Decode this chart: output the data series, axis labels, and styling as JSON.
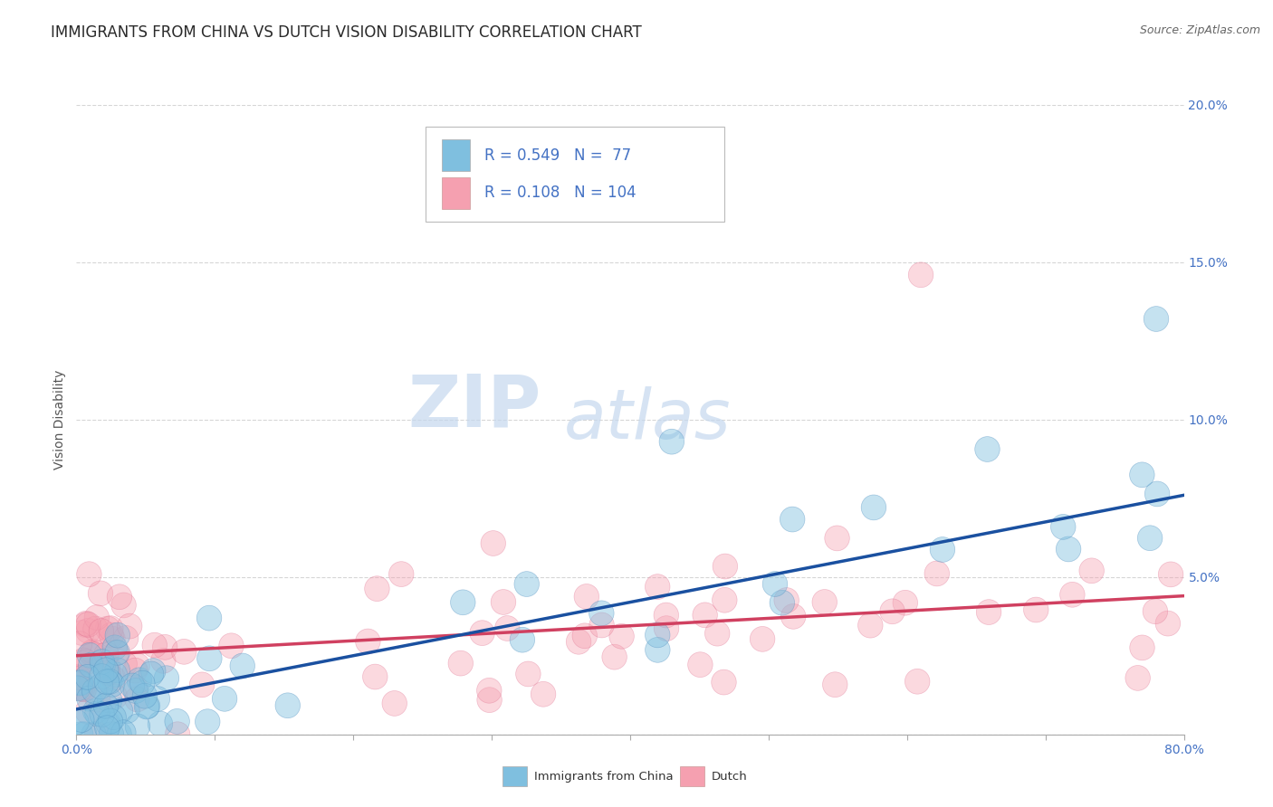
{
  "title": "IMMIGRANTS FROM CHINA VS DUTCH VISION DISABILITY CORRELATION CHART",
  "source": "Source: ZipAtlas.com",
  "ylabel": "Vision Disability",
  "series1_label": "Immigrants from China",
  "series2_label": "Dutch",
  "series1_color": "#7fbfdf",
  "series2_color": "#f5a0b0",
  "series1_edge_color": "#5090c0",
  "series2_edge_color": "#e07090",
  "series1_line_color": "#1a50a0",
  "series2_line_color": "#d04060",
  "legend_R1": "0.549",
  "legend_N1": "77",
  "legend_R2": "0.108",
  "legend_N2": "104",
  "xlim": [
    0.0,
    0.8
  ],
  "ylim": [
    0.0,
    0.2
  ],
  "background_color": "#ffffff",
  "watermark_zip": "ZIP",
  "watermark_atlas": "atlas",
  "title_fontsize": 12,
  "source_fontsize": 9,
  "tick_fontsize": 10,
  "tick_color": "#4472c4",
  "ylabel_fontsize": 10,
  "ylabel_color": "#555555",
  "grid_color": "#cccccc",
  "legend_text_color": "#4472c4",
  "legend_fontsize": 12
}
